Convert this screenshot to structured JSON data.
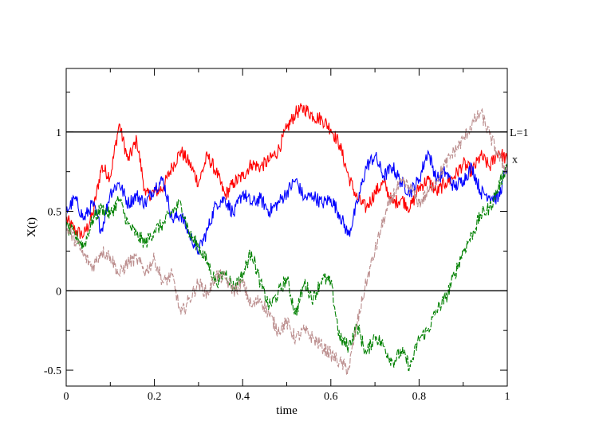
{
  "chart_data": {
    "type": "line",
    "xlabel": "time",
    "ylabel": "X(t)",
    "xlim": [
      0,
      1
    ],
    "ylim": [
      -0.6,
      1.4
    ],
    "xticks": [
      0,
      0.2,
      0.4,
      0.6,
      0.8,
      1
    ],
    "xtick_labels": [
      "0",
      "0.2",
      "0.4",
      "0.6",
      "0.8",
      "1"
    ],
    "yticks": [
      -0.5,
      0,
      0.5,
      1
    ],
    "ytick_labels": [
      "-0.5",
      "0",
      "0.5",
      "1"
    ],
    "grid": false,
    "reference_lines": [
      {
        "y": 1,
        "label": "L=1",
        "color": "#000000"
      },
      {
        "y": 0,
        "label": "",
        "color": "#000000"
      }
    ],
    "endpoint_annotation": {
      "text": "x",
      "y": 0.83
    },
    "series": [
      {
        "color": "#ff0000",
        "style": "solid",
        "x": [
          0,
          0.02,
          0.04,
          0.06,
          0.08,
          0.1,
          0.12,
          0.14,
          0.16,
          0.18,
          0.2,
          0.22,
          0.24,
          0.26,
          0.28,
          0.3,
          0.32,
          0.34,
          0.36,
          0.38,
          0.4,
          0.42,
          0.44,
          0.46,
          0.48,
          0.5,
          0.52,
          0.54,
          0.56,
          0.58,
          0.6,
          0.62,
          0.64,
          0.66,
          0.68,
          0.7,
          0.72,
          0.74,
          0.76,
          0.78,
          0.8,
          0.82,
          0.84,
          0.86,
          0.88,
          0.9,
          0.92,
          0.94,
          0.96,
          0.98,
          1
        ],
        "y": [
          0.45,
          0.38,
          0.35,
          0.48,
          0.78,
          0.72,
          1.05,
          0.82,
          0.95,
          0.6,
          0.62,
          0.65,
          0.78,
          0.88,
          0.8,
          0.68,
          0.85,
          0.75,
          0.6,
          0.68,
          0.72,
          0.8,
          0.78,
          0.82,
          0.88,
          1.02,
          1.12,
          1.15,
          1.1,
          1.08,
          1.02,
          0.92,
          0.72,
          0.58,
          0.52,
          0.62,
          0.68,
          0.55,
          0.58,
          0.52,
          0.65,
          0.7,
          0.62,
          0.68,
          0.72,
          0.8,
          0.75,
          0.85,
          0.78,
          0.88,
          0.82
        ]
      },
      {
        "color": "#0000ff",
        "style": "solid",
        "x": [
          0,
          0.02,
          0.04,
          0.06,
          0.08,
          0.1,
          0.12,
          0.14,
          0.16,
          0.18,
          0.2,
          0.22,
          0.24,
          0.26,
          0.28,
          0.3,
          0.32,
          0.34,
          0.36,
          0.38,
          0.4,
          0.42,
          0.44,
          0.46,
          0.48,
          0.5,
          0.52,
          0.54,
          0.56,
          0.58,
          0.6,
          0.62,
          0.64,
          0.66,
          0.68,
          0.7,
          0.72,
          0.74,
          0.76,
          0.78,
          0.8,
          0.82,
          0.84,
          0.86,
          0.88,
          0.9,
          0.92,
          0.94,
          0.96,
          0.98,
          1
        ],
        "y": [
          0.5,
          0.58,
          0.45,
          0.55,
          0.38,
          0.62,
          0.68,
          0.55,
          0.6,
          0.55,
          0.65,
          0.7,
          0.45,
          0.48,
          0.35,
          0.25,
          0.38,
          0.55,
          0.58,
          0.48,
          0.62,
          0.55,
          0.58,
          0.5,
          0.55,
          0.62,
          0.7,
          0.58,
          0.6,
          0.55,
          0.58,
          0.48,
          0.35,
          0.55,
          0.78,
          0.85,
          0.72,
          0.78,
          0.68,
          0.62,
          0.7,
          0.88,
          0.7,
          0.75,
          0.65,
          0.7,
          0.78,
          0.62,
          0.6,
          0.58,
          0.8
        ]
      },
      {
        "color": "#008000",
        "style": "dashed",
        "x": [
          0,
          0.02,
          0.04,
          0.06,
          0.08,
          0.1,
          0.12,
          0.14,
          0.16,
          0.18,
          0.2,
          0.22,
          0.24,
          0.26,
          0.28,
          0.3,
          0.32,
          0.34,
          0.36,
          0.38,
          0.4,
          0.42,
          0.44,
          0.46,
          0.48,
          0.5,
          0.52,
          0.54,
          0.56,
          0.58,
          0.6,
          0.62,
          0.64,
          0.66,
          0.68,
          0.7,
          0.72,
          0.74,
          0.76,
          0.78,
          0.8,
          0.82,
          0.84,
          0.86,
          0.88,
          0.9,
          0.92,
          0.94,
          0.96,
          0.98,
          1
        ],
        "y": [
          0.4,
          0.35,
          0.28,
          0.45,
          0.52,
          0.48,
          0.58,
          0.42,
          0.35,
          0.3,
          0.38,
          0.42,
          0.5,
          0.55,
          0.35,
          0.28,
          0.18,
          0.05,
          0.12,
          0.02,
          0.1,
          0.25,
          0.05,
          -0.1,
          -0.02,
          0.08,
          -0.15,
          0.05,
          -0.05,
          0.08,
          0.05,
          -0.3,
          -0.35,
          -0.22,
          -0.4,
          -0.28,
          -0.35,
          -0.45,
          -0.38,
          -0.48,
          -0.3,
          -0.25,
          -0.12,
          -0.05,
          0.1,
          0.25,
          0.35,
          0.48,
          0.52,
          0.65,
          0.8
        ]
      },
      {
        "color": "#bc8f8f",
        "style": "dashed",
        "x": [
          0,
          0.02,
          0.04,
          0.06,
          0.08,
          0.1,
          0.12,
          0.14,
          0.16,
          0.18,
          0.2,
          0.22,
          0.24,
          0.26,
          0.28,
          0.3,
          0.32,
          0.34,
          0.36,
          0.38,
          0.4,
          0.42,
          0.44,
          0.46,
          0.48,
          0.5,
          0.52,
          0.54,
          0.56,
          0.58,
          0.6,
          0.62,
          0.64,
          0.66,
          0.68,
          0.7,
          0.72,
          0.74,
          0.76,
          0.78,
          0.8,
          0.82,
          0.84,
          0.86,
          0.88,
          0.9,
          0.92,
          0.94,
          0.96,
          0.98,
          1
        ],
        "y": [
          0.4,
          0.32,
          0.22,
          0.15,
          0.25,
          0.22,
          0.1,
          0.18,
          0.2,
          0.12,
          0.2,
          0.05,
          0.1,
          -0.15,
          -0.05,
          0.05,
          -0.02,
          0.1,
          0.08,
          0.0,
          0.05,
          -0.1,
          -0.05,
          -0.15,
          -0.25,
          -0.2,
          -0.3,
          -0.25,
          -0.3,
          -0.35,
          -0.4,
          -0.45,
          -0.5,
          -0.2,
          0.05,
          0.25,
          0.45,
          0.6,
          0.68,
          0.65,
          0.55,
          0.62,
          0.7,
          0.8,
          0.88,
          0.95,
          1.05,
          1.12,
          0.98,
          0.85,
          0.75
        ]
      }
    ]
  }
}
